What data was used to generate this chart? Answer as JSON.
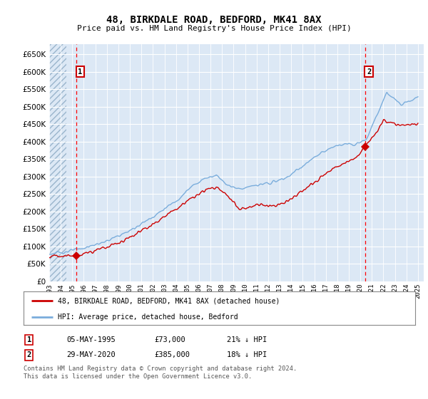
{
  "title": "48, BIRKDALE ROAD, BEDFORD, MK41 8AX",
  "subtitle": "Price paid vs. HM Land Registry's House Price Index (HPI)",
  "ylabel_ticks": [
    0,
    50000,
    100000,
    150000,
    200000,
    250000,
    300000,
    350000,
    400000,
    450000,
    500000,
    550000,
    600000,
    650000
  ],
  "ylim": [
    0,
    680000
  ],
  "xlim": [
    1993.0,
    2025.5
  ],
  "transaction1_x": 1995.35,
  "transaction1_y": 73000,
  "transaction2_x": 2020.4,
  "transaction2_y": 385000,
  "legend_line1": "48, BIRKDALE ROAD, BEDFORD, MK41 8AX (detached house)",
  "legend_line2": "HPI: Average price, detached house, Bedford",
  "table_row1": [
    "1",
    "05-MAY-1995",
    "£73,000",
    "21% ↓ HPI"
  ],
  "table_row2": [
    "2",
    "29-MAY-2020",
    "£385,000",
    "18% ↓ HPI"
  ],
  "footnote1": "Contains HM Land Registry data © Crown copyright and database right 2024.",
  "footnote2": "This data is licensed under the Open Government Licence v3.0.",
  "line_color_red": "#cc0000",
  "line_color_blue": "#7aaddc",
  "plot_bg": "#dce8f5",
  "grid_color": "#ffffff",
  "hatch_end_year": 1994.5
}
